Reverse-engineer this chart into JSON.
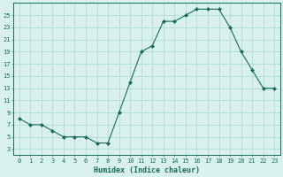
{
  "x": [
    0,
    1,
    2,
    3,
    4,
    5,
    6,
    7,
    8,
    9,
    10,
    11,
    12,
    13,
    14,
    15,
    16,
    17,
    18,
    19,
    20,
    21,
    22,
    23
  ],
  "y": [
    8,
    7,
    7,
    6,
    5,
    5,
    5,
    4,
    4,
    9,
    14,
    19,
    20,
    24,
    24,
    25,
    26,
    26,
    26,
    23,
    19,
    16,
    13,
    13
  ],
  "line_color": "#1a6b5a",
  "marker_color": "#1a6b5a",
  "bg_color": "#d8f0ee",
  "grid_color": "#aed8d4",
  "xlabel": "Humidex (Indice chaleur)",
  "yticks": [
    3,
    5,
    7,
    9,
    11,
    13,
    15,
    17,
    19,
    21,
    23,
    25
  ],
  "ylim": [
    2,
    27
  ],
  "xlim": [
    -0.5,
    23.5
  ],
  "tick_color": "#1a6b5a",
  "label_color": "#1a6b5a",
  "tick_fontsize": 5.0,
  "xlabel_fontsize": 6.0
}
